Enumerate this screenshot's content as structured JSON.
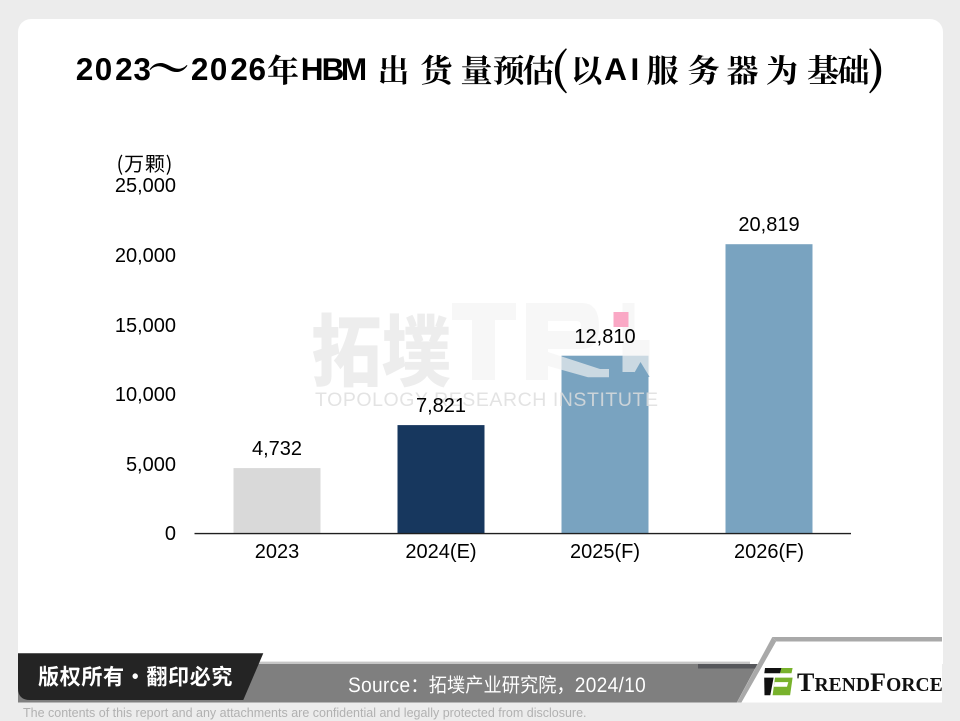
{
  "page": {
    "title": "2023～2026年HBM出货量预估(以AI服务器为基础)"
  },
  "chart_data": {
    "type": "bar",
    "title": "2023～2026年HBM出货量预估(以AI服务器为基础)",
    "ylabel": "(万颗)",
    "xlabel": "",
    "categories": [
      "2023",
      "2024(E)",
      "2025(F)",
      "2026(F)"
    ],
    "values": [
      4732,
      7821,
      12810,
      20819
    ],
    "value_labels": [
      "4,732",
      "7,821",
      "12,810",
      "20,819"
    ],
    "bar_colors": [
      "#d9d9d9",
      "#17375e",
      "#79a3c0",
      "#79a3c0"
    ],
    "ylim": [
      0,
      25000
    ],
    "ytick_step": 5000,
    "ytick_labels": [
      "0",
      "5,000",
      "10,000",
      "15,000",
      "20,000",
      "25,000"
    ],
    "grid": false,
    "legend": false,
    "annotations": [
      {
        "type": "square-marker",
        "color": "#faa8c5",
        "category": "2025(F)",
        "value": 15400
      }
    ]
  },
  "watermark": {
    "cjk": "拓墣",
    "monogram": "TRI",
    "latin": "TOPOLOGY RESEARCH INSTITUTE"
  },
  "footer": {
    "copyright": "版权所有·翻印必究",
    "source": "Source：拓墣产业研究院，2024/10",
    "logo_text": "TRENDFORCE",
    "disclaimer": "The contents of this report and any attachments are confidential and legally protected from disclosure."
  },
  "colors": {
    "page_background": "#ececec",
    "slide_background": "#ffffff",
    "bar_2023": "#d9d9d9",
    "bar_2024": "#17375e",
    "bar_2025_2026": "#79a3c0",
    "marker_pink": "#faa8c5",
    "footer_band": "#7f7f7f",
    "badge_black": "#242424",
    "logo_green": "#78b22c"
  }
}
